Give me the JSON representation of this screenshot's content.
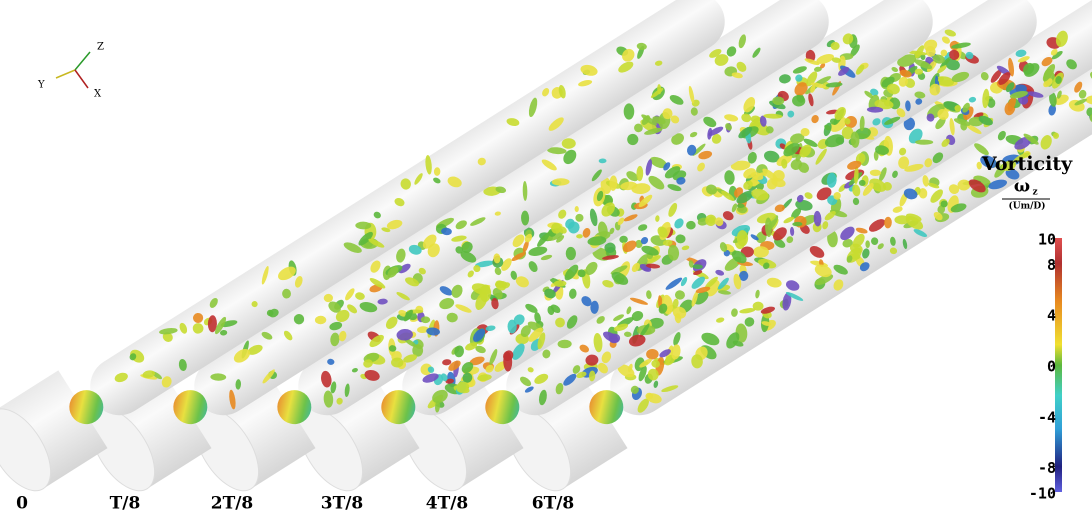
{
  "axes_triad": {
    "labels": [
      "Z",
      "Y",
      "X"
    ]
  },
  "panels": [
    {
      "label": "0"
    },
    {
      "label": "T/8"
    },
    {
      "label": "2T/8"
    },
    {
      "label": "3T/8"
    },
    {
      "label": "4T/8"
    },
    {
      "label": "6T/8"
    }
  ],
  "colorbar": {
    "title": "Vorticity",
    "quantity": "ω",
    "quantity_subscript": "z",
    "units": "(Um/D)",
    "lim": [
      -10,
      10
    ],
    "ticks": [
      10,
      8,
      4,
      0,
      -4,
      -8,
      -10
    ]
  }
}
